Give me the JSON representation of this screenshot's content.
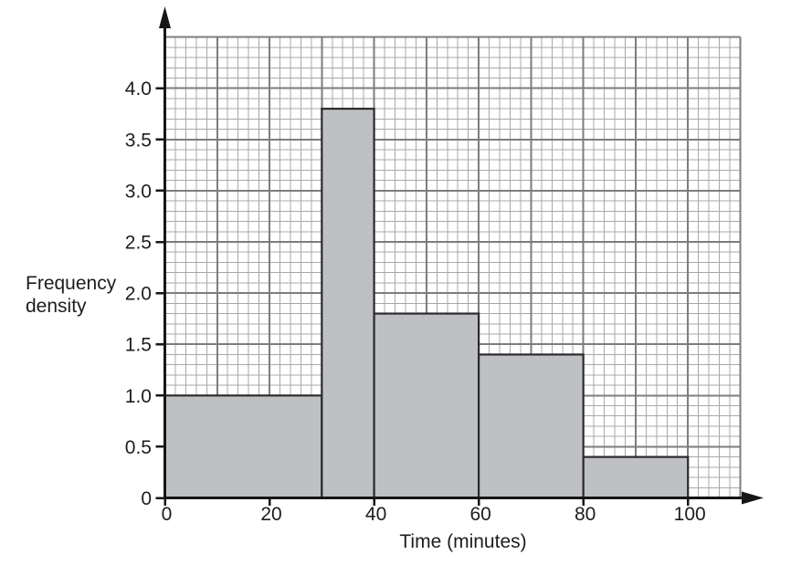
{
  "figure": {
    "kind": "histogram",
    "xlabel": "Time (minutes)",
    "ylabel": "Frequency density",
    "ylabel_lines": [
      "Frequency",
      "density"
    ]
  },
  "chart_data": {
    "type": "bar",
    "subtype": "histogram",
    "title": "",
    "xlabel": "Time (minutes)",
    "ylabel": "Frequency density",
    "ylabel_lines": [
      "Frequency",
      "density"
    ],
    "bars": [
      {
        "from": 0,
        "to": 30,
        "frequency_density": 1.0
      },
      {
        "from": 30,
        "to": 40,
        "frequency_density": 3.8
      },
      {
        "from": 40,
        "to": 60,
        "frequency_density": 1.8
      },
      {
        "from": 60,
        "to": 80,
        "frequency_density": 1.4
      },
      {
        "from": 80,
        "to": 100,
        "frequency_density": 0.4
      }
    ],
    "x_ticks": [
      {
        "value": 0,
        "label": "0"
      },
      {
        "value": 20,
        "label": "20"
      },
      {
        "value": 40,
        "label": "40"
      },
      {
        "value": 60,
        "label": "60"
      },
      {
        "value": 80,
        "label": "80"
      },
      {
        "value": 100,
        "label": "100"
      }
    ],
    "y_ticks": [
      {
        "value": 0,
        "label": "0"
      },
      {
        "value": 0.5,
        "label": "0.5"
      },
      {
        "value": 1.0,
        "label": "1.0"
      },
      {
        "value": 1.5,
        "label": "1.5"
      },
      {
        "value": 2.0,
        "label": "2.0"
      },
      {
        "value": 2.5,
        "label": "2.5"
      },
      {
        "value": 3.0,
        "label": "3.0"
      },
      {
        "value": 3.5,
        "label": "3.5"
      },
      {
        "value": 4.0,
        "label": "4.0"
      }
    ],
    "xlim": [
      0,
      110
    ],
    "ylim": [
      0,
      4.5
    ],
    "grid": {
      "visible": true,
      "minor_x_step": 2,
      "minor_y_step": 0.1,
      "major_x_step": 10,
      "major_y_step": 0.5
    },
    "legend": null,
    "colors": {
      "background": "#ffffff",
      "bar_fill": "#bec0c3",
      "bar_border": "#2b2b2b",
      "grid_minor": "#a8a8a8",
      "grid_major": "#7d7d7d",
      "axis": "#161616",
      "text": "#1d1d1f"
    }
  }
}
